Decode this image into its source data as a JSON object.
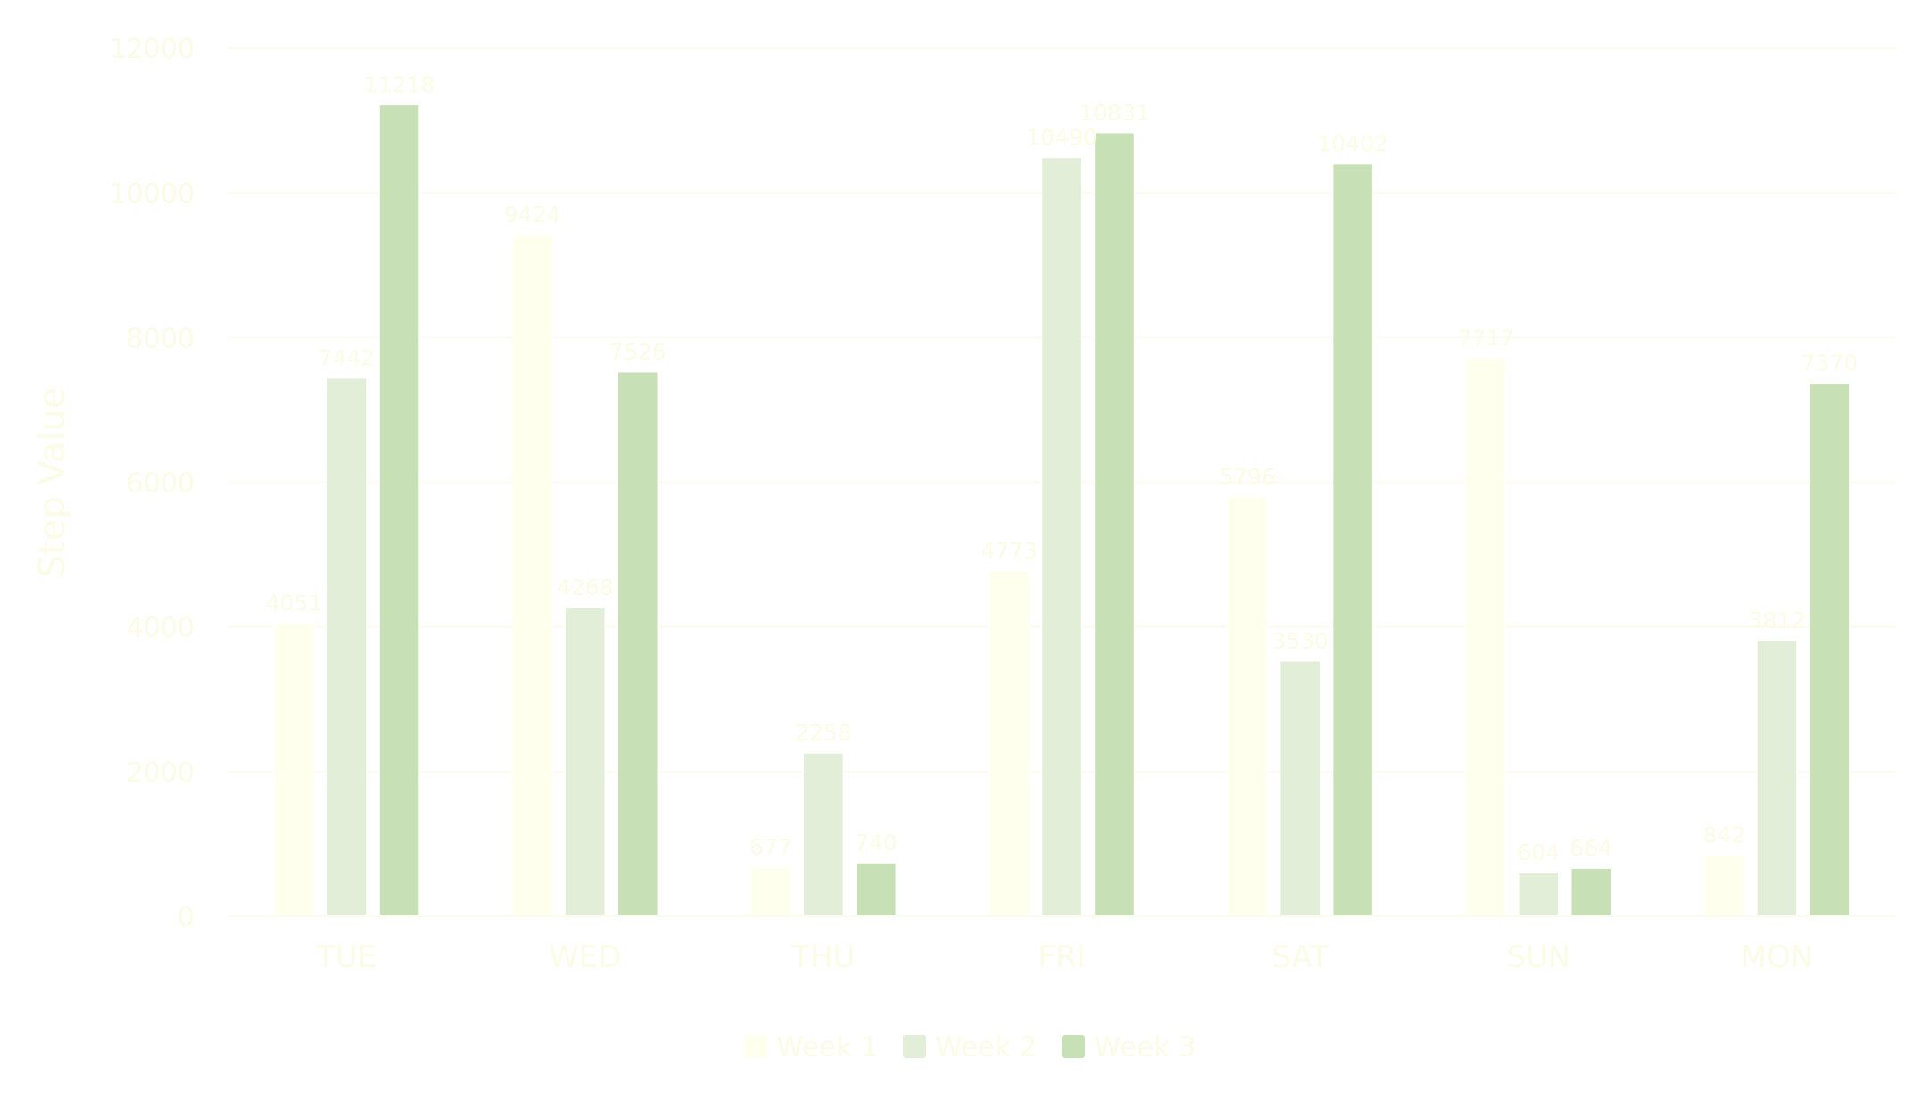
{
  "chart_data": {
    "type": "bar",
    "title": "",
    "xlabel": "",
    "ylabel": "Step Value",
    "categories": [
      "TUE",
      "WED",
      "THU",
      "FRI",
      "SAT",
      "SUN",
      "MON"
    ],
    "ylim": [
      0,
      12000
    ],
    "yticks": [
      0,
      2000,
      4000,
      6000,
      8000,
      10000,
      12000
    ],
    "grid": true,
    "legend_position": "bottom",
    "series": [
      {
        "name": "Week 1",
        "color": "#ffffee",
        "values": [
          4051,
          9424,
          677,
          4773,
          5796,
          7717,
          842
        ],
        "labels": [
          "4051",
          "9424",
          "677",
          "4773",
          "5796",
          "7717",
          "842"
        ]
      },
      {
        "name": "Week 2",
        "color": "#e2eed7",
        "values": [
          7442,
          4268,
          2258,
          10490,
          3530,
          604,
          3812
        ],
        "labels": [
          "7442",
          "4268",
          "2258",
          "10490",
          "3530",
          "604",
          "3812"
        ]
      },
      {
        "name": "Week 3",
        "color": "#c7e0b5",
        "values": [
          11218,
          7526,
          740,
          10831,
          10402,
          664,
          7370
        ],
        "labels": [
          "11218",
          "7526",
          "740",
          "10831",
          "10402",
          "664",
          "7370"
        ]
      }
    ],
    "colors": {
      "axis_text": "#fbfbe6",
      "grid": "#fbfbee",
      "value_label": "#fbfbe6"
    }
  }
}
